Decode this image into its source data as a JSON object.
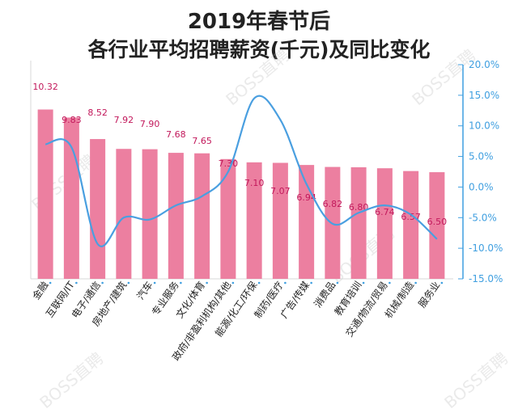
{
  "title_line1": "2019年春节后",
  "title_line2": "各行业平均招聘薪资(千元)及同比变化",
  "watermark": "BOSS直聘",
  "colors": {
    "bar": "#ec7fa0",
    "line": "#4a9fe0",
    "label": "#c2185b",
    "axis_right": "#3f9fe0",
    "text": "#222222"
  },
  "chart_data": {
    "type": "bar+line",
    "categories": [
      "金融",
      "互联网/IT",
      "电子/通信",
      "房地产/建筑",
      "汽车",
      "专业服务",
      "文化/体育",
      "政府/非盈利机构/其他",
      "能源/化工/环保",
      "制药/医疗",
      "广告/传媒",
      "消费品",
      "教育培训",
      "交通/物流/贸易",
      "机械/制造",
      "服务业"
    ],
    "series": [
      {
        "type": "bar",
        "axis": "left",
        "values": [
          10.32,
          9.83,
          8.52,
          7.92,
          7.9,
          7.68,
          7.65,
          7.3,
          7.1,
          7.07,
          6.94,
          6.82,
          6.8,
          6.74,
          6.57,
          6.5
        ],
        "labels": [
          "10.32",
          "9.83",
          "8.52",
          "7.92",
          "7.90",
          "7.68",
          "7.65",
          "7.30",
          "7.10",
          "7.07",
          "6.94",
          "6.82",
          "6.80",
          "6.74",
          "6.57",
          "6.50"
        ]
      },
      {
        "type": "line",
        "axis": "right",
        "values": [
          7.0,
          6.5,
          -9.3,
          -5.0,
          -5.3,
          -3.0,
          -1.5,
          2.5,
          14.5,
          11.0,
          0.5,
          -6.0,
          -4.2,
          -3.0,
          -4.5,
          -8.5
        ]
      }
    ],
    "y2": {
      "ticks": [
        "20.0%",
        "15.0%",
        "10.0%",
        "5.0%",
        "0.0%",
        "-5.0%",
        "-10.0%",
        "-15.0%"
      ],
      "ylim": [
        -15,
        20
      ]
    },
    "grid": false,
    "smooth_line": true
  }
}
